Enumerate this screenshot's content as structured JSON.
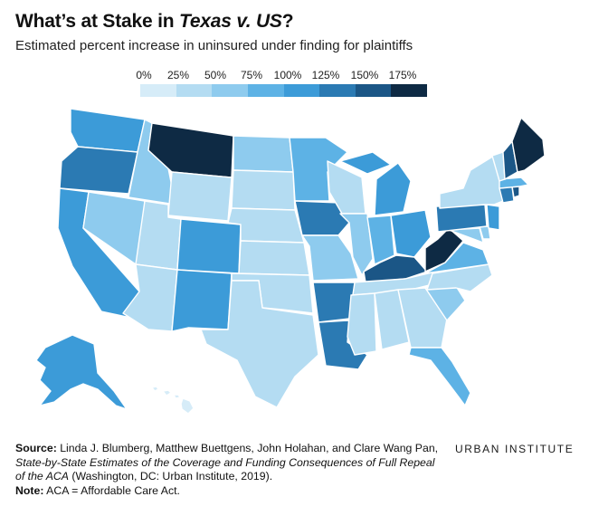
{
  "title_prefix": "What’s at Stake in ",
  "title_case": "Texas v. US",
  "title_suffix": "?",
  "subtitle": "Estimated percent increase in uninsured under finding for plaintiffs",
  "legend": {
    "labels": [
      "0%",
      "25%",
      "50%",
      "75%",
      "100%",
      "125%",
      "150%",
      "175%"
    ],
    "colors": [
      "#d6ecf8",
      "#b4dcf2",
      "#8ecbee",
      "#5db2e5",
      "#3c9bd8",
      "#2b7ab3",
      "#1b5686",
      "#0e2a44"
    ]
  },
  "footer": {
    "source_label": "Source:",
    "source_text": " Linda J. Blumberg, Matthew Buettgens, John Holahan, and Clare Wang Pan, ",
    "source_italic": "State-by-State Estimates of the Coverage and Funding Consequences of Full Repeal of the ACA",
    "source_end": " (Washington, DC: Urban Institute, 2019).",
    "note_label": "Note:",
    "note_text": " ACA = Affordable Care Act."
  },
  "brand": "URBAN INSTITUTE"
}
